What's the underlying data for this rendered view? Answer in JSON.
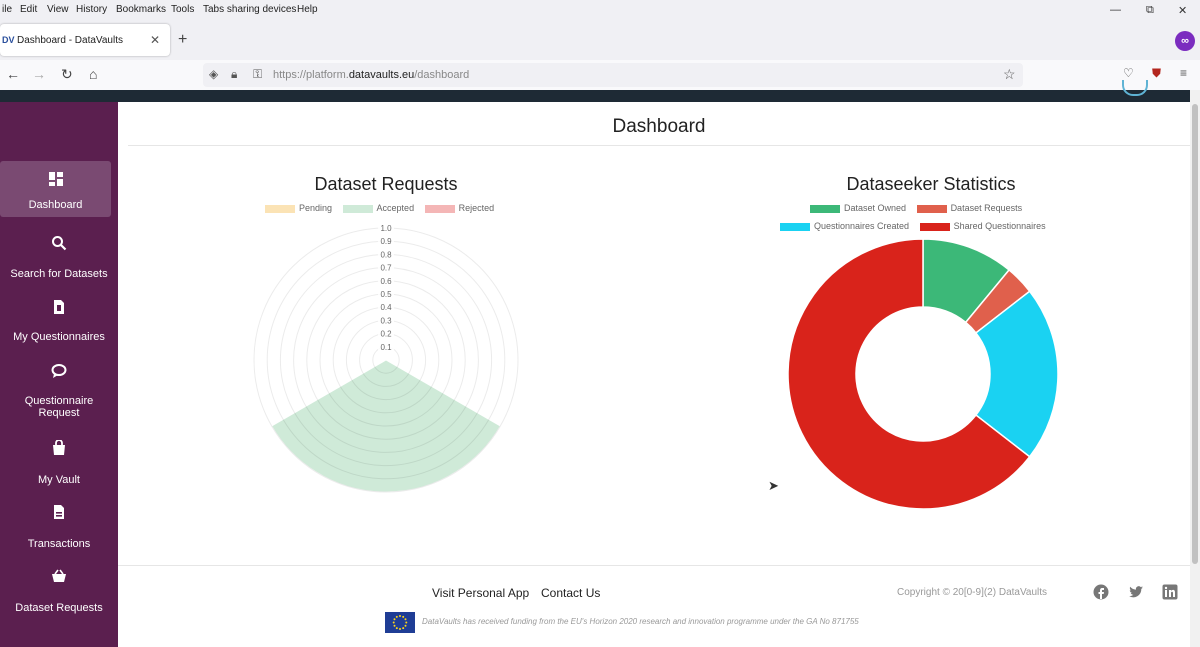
{
  "browser": {
    "menu": [
      "ile",
      "Edit",
      "View",
      "History",
      "Bookmarks",
      "Tools",
      "Tabs sharing devices",
      "Help"
    ],
    "tab_title": "Dashboard - DataVaults",
    "tab_favicon": "DV",
    "url_prefix": "https://platform.",
    "url_domain": "datavaults.eu",
    "url_path": "/dashboard",
    "extension_label": "∞"
  },
  "sidebar": {
    "items": [
      {
        "label": "Dashboard",
        "icon": "dashboard-icon",
        "active": true
      },
      {
        "label": "Search for Datasets",
        "icon": "search-icon"
      },
      {
        "label": "My Questionnaires",
        "icon": "document-icon"
      },
      {
        "label": "Questionnaire Request",
        "icon": "chat-icon"
      },
      {
        "label": "My Vault",
        "icon": "bag-icon"
      },
      {
        "label": "Transactions",
        "icon": "file-icon"
      },
      {
        "label": "Dataset Requests",
        "icon": "basket-icon"
      }
    ]
  },
  "page_title": "Dashboard",
  "chart_data": [
    {
      "type": "polar-area",
      "title": "Dataset Requests",
      "categories": [
        "Pending",
        "Accepted",
        "Rejected"
      ],
      "values": [
        0,
        1,
        0
      ],
      "colors": [
        "#fbe3b5",
        "#cfead8",
        "#f4b6b6"
      ],
      "r_ticks": [
        "0.1",
        "0.2",
        "0.3",
        "0.4",
        "0.5",
        "0.6",
        "0.7",
        "0.8",
        "0.9",
        "1.0"
      ],
      "rlim": [
        0,
        1
      ],
      "legend": "top"
    },
    {
      "type": "doughnut",
      "title": "Dataseeker Statistics",
      "categories": [
        "Dataset Owned",
        "Dataset Requests",
        "Questionnaires Created",
        "Shared Questionnaires"
      ],
      "values": [
        11,
        3.5,
        21,
        64.5
      ],
      "colors": [
        "#3cb878",
        "#e0604c",
        "#1ad2f2",
        "#d9231b"
      ],
      "legend": "top"
    }
  ],
  "footer": {
    "links": [
      "Visit Personal App",
      "Contact Us"
    ],
    "copyright": "Copyright © 20[0-9](2) DataVaults",
    "social": [
      "facebook-icon",
      "twitter-icon",
      "linkedin-icon"
    ],
    "funding_note": "DataVaults has received funding from the EU's Horizon 2020 research and innovation programme under the GA No 871755"
  }
}
